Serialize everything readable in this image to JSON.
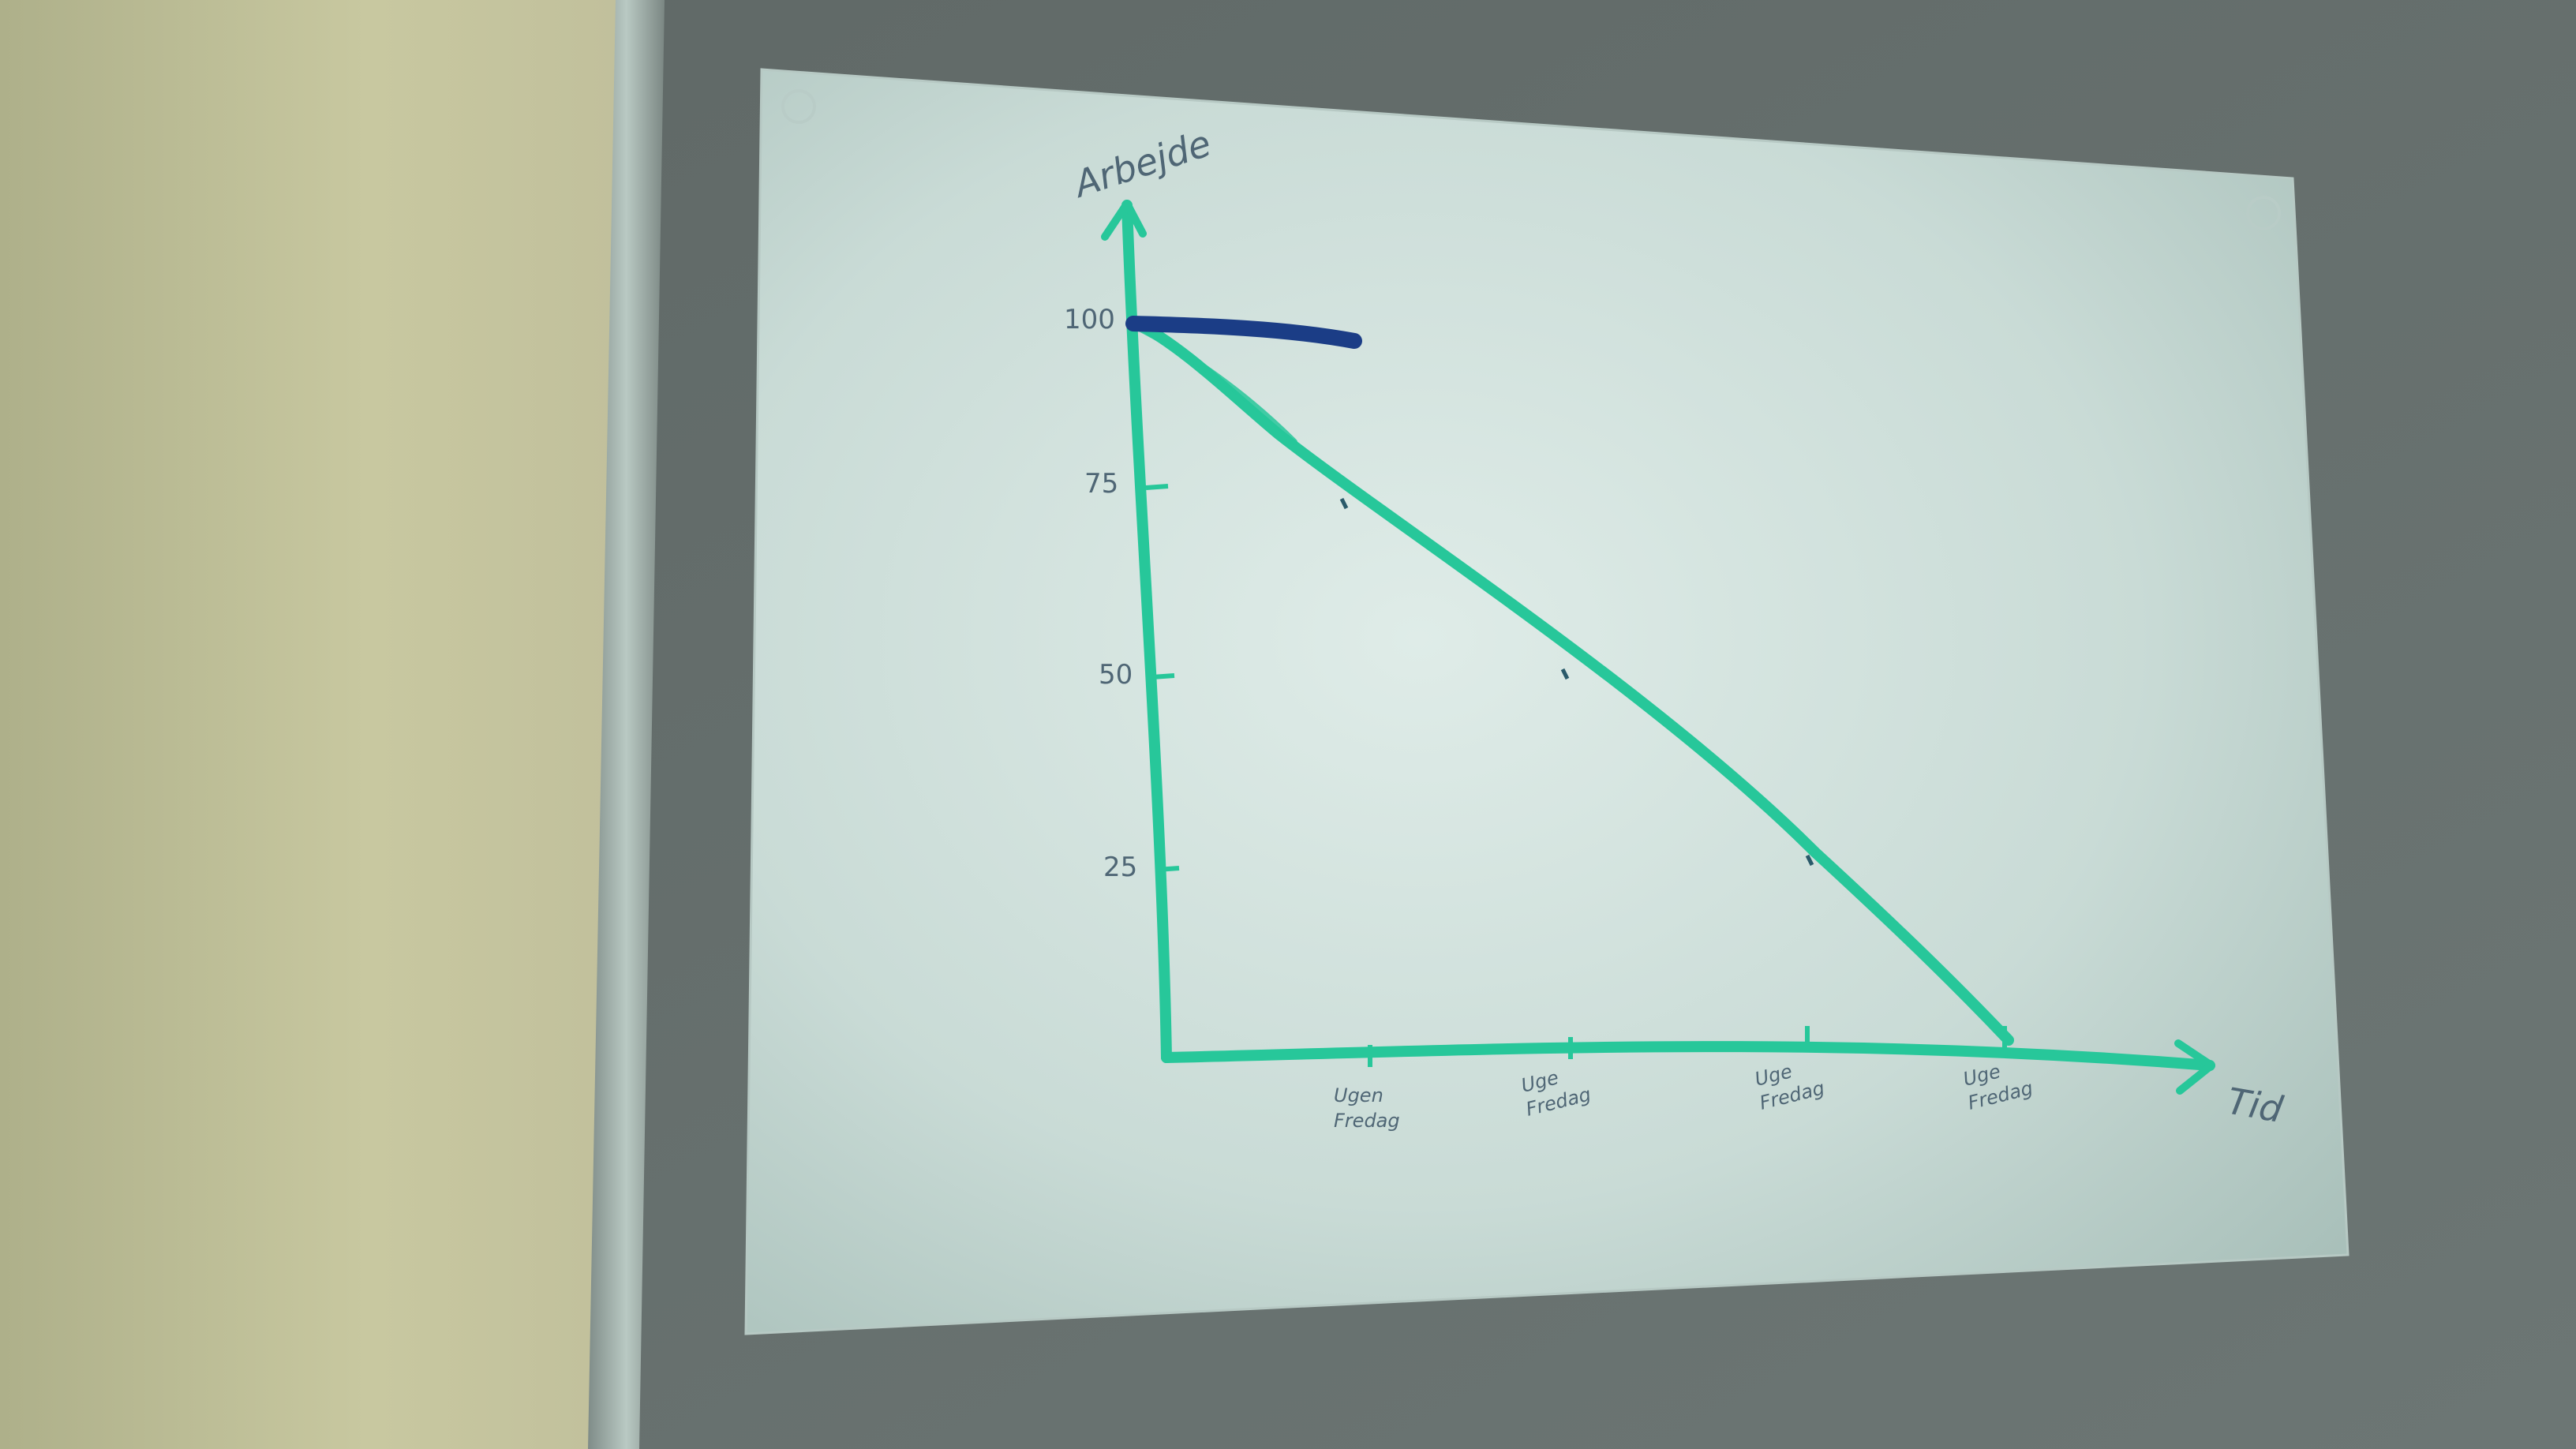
{
  "photo": {
    "subject": "hand-drawn chart on paper pinned to wall",
    "y_axis_label": "Arbejde",
    "x_axis_label": "Tid",
    "y_ticks": [
      "100",
      "75",
      "50",
      "25"
    ],
    "x_ticks": [
      [
        "Ugen",
        "Fredag"
      ],
      [
        "Uge",
        "Fredag"
      ],
      [
        "Uge",
        "Fredag"
      ],
      [
        "Uge",
        "Fredag"
      ]
    ]
  },
  "colors": {
    "wall": "#6a7472",
    "wall_left": "#c3c59a",
    "frame": "#9aa8a3",
    "paper": "#c9d9d5",
    "marker_green": "#27c79a",
    "marker_blue": "#1b3d86",
    "pencil": "#4f6675"
  }
}
